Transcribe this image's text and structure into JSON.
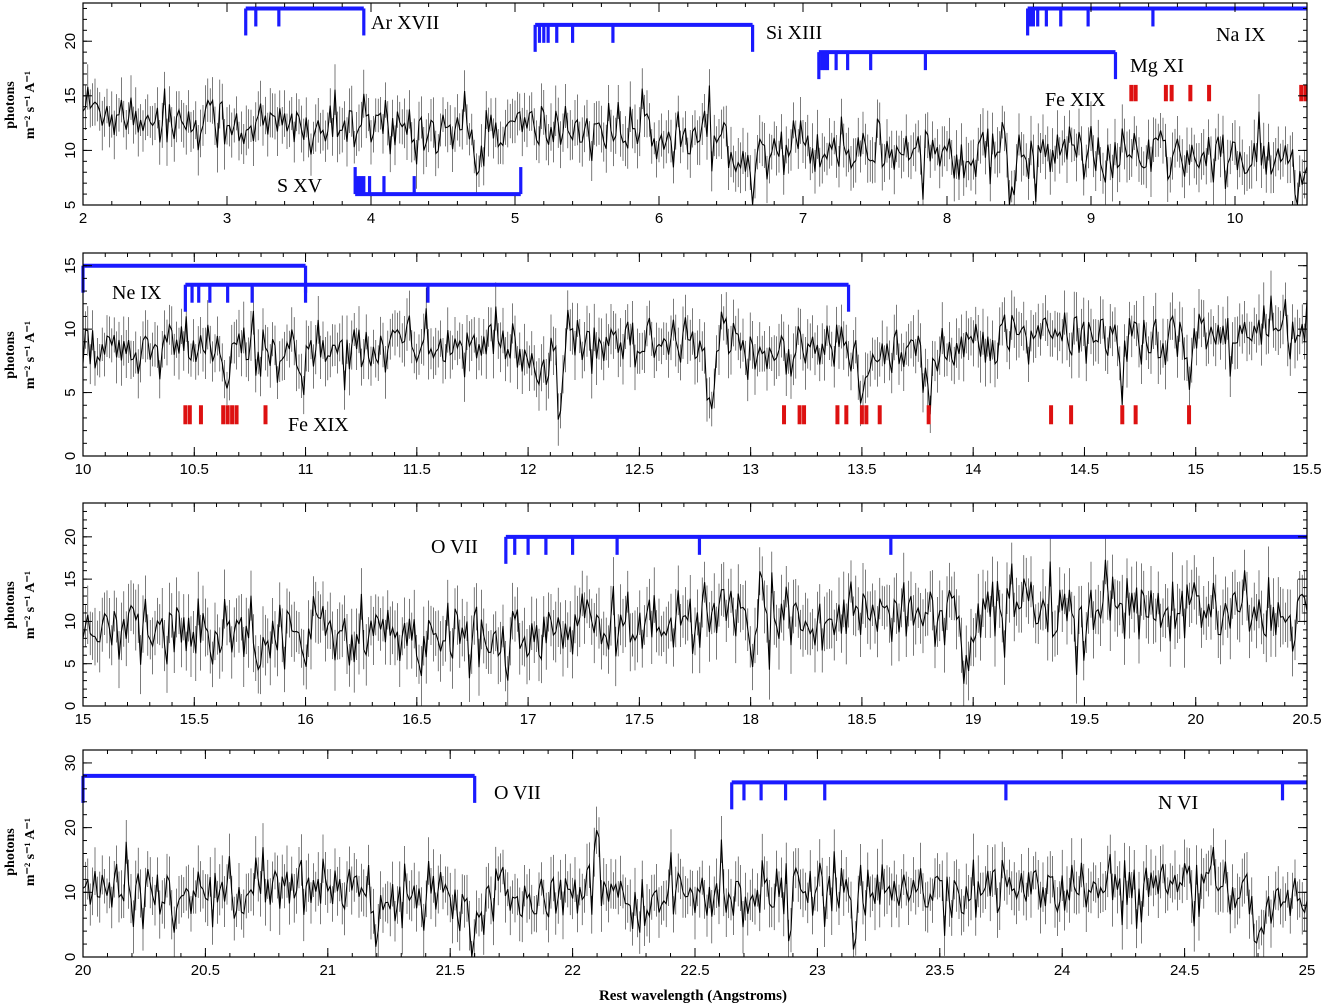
{
  "chart_data": [
    {
      "type": "line",
      "panel": 1,
      "xlim": [
        2,
        10.5
      ],
      "ylim": [
        5,
        23.5
      ],
      "x_ticks": [
        "2",
        "3",
        "4",
        "5",
        "6",
        "7",
        "8",
        "9",
        "10"
      ],
      "y_ticks": [
        "5",
        "10",
        "15",
        "20"
      ],
      "ylabel": [
        "photons",
        "m⁻² s⁻¹ A⁻¹"
      ],
      "xlabel": "",
      "spectrum_profile": {
        "x": [
          2.0,
          2.5,
          3.0,
          3.5,
          4.0,
          4.5,
          5.0,
          5.5,
          6.0,
          6.5,
          7.0,
          7.5,
          8.0,
          8.5,
          9.0,
          9.5,
          10.0,
          10.5
        ],
        "y": [
          14.0,
          13.0,
          12.5,
          12.0,
          12.0,
          12.0,
          12.0,
          12.0,
          11.5,
          10.5,
          10.5,
          10.2,
          10.0,
          9.8,
          9.8,
          9.5,
          9.2,
          9.0
        ],
        "noise": 1.8,
        "absorption": [
          [
            6.65,
            3.5
          ],
          [
            8.45,
            2.5
          ],
          [
            9.15,
            2.0
          ],
          [
            4.75,
            3.0
          ],
          [
            10.45,
            2.5
          ]
        ]
      },
      "line_series": [
        {
          "label": "Ar XVII",
          "color": "#1a1aff",
          "y": 23.0,
          "lines": [
            3.13,
            3.2,
            3.36,
            3.95
          ]
        },
        {
          "label": "Si XIII",
          "color": "#1a1aff",
          "y": 21.5,
          "lines": [
            5.14,
            5.17,
            5.2,
            5.23,
            5.29,
            5.4,
            5.68,
            6.65
          ]
        },
        {
          "label": "Na IX",
          "color": "#1a1aff",
          "y": 23.0,
          "lines": [
            8.56,
            8.58,
            8.6,
            8.63,
            8.69,
            8.79,
            8.98,
            9.43,
            10.5
          ]
        },
        {
          "label": "Mg XI",
          "color": "#1a1aff",
          "y": 19.0,
          "lines": [
            7.11,
            7.13,
            7.15,
            7.17,
            7.23,
            7.31,
            7.47,
            7.85,
            9.17
          ]
        },
        {
          "label": "S XV",
          "color": "#1a1aff",
          "y": 6.0,
          "lines": [
            3.89,
            3.91,
            3.93,
            3.95,
            3.99,
            4.09,
            4.3,
            5.04
          ]
        },
        {
          "label": "Fe XIX",
          "color": "#dd1111",
          "ticks_y": [
            14.5,
            16.0
          ],
          "lines": [
            9.28,
            9.31,
            9.52,
            9.56,
            9.69,
            9.82,
            10.46,
            10.49
          ]
        }
      ]
    },
    {
      "type": "line",
      "panel": 2,
      "xlim": [
        10,
        15.5
      ],
      "ylim": [
        0,
        16
      ],
      "x_ticks": [
        "10",
        "10.5",
        "11",
        "11.5",
        "12",
        "12.5",
        "13",
        "13.5",
        "14",
        "14.5",
        "15",
        "15.5"
      ],
      "y_ticks": [
        "0",
        "5",
        "10",
        "15"
      ],
      "ylabel": [
        "photons",
        "m⁻² s⁻¹ A⁻¹"
      ],
      "xlabel": "",
      "spectrum_profile": {
        "x": [
          10.0,
          10.5,
          11.0,
          11.5,
          12.0,
          12.5,
          13.0,
          13.5,
          14.0,
          14.5,
          15.0,
          15.5
        ],
        "y": [
          8.0,
          8.5,
          8.5,
          8.8,
          8.5,
          8.5,
          8.5,
          8.3,
          8.8,
          9.5,
          9.5,
          10.0
        ],
        "noise": 1.6,
        "absorption": [
          [
            10.65,
            3.0
          ],
          [
            10.98,
            3.0
          ],
          [
            12.04,
            3.5
          ],
          [
            12.14,
            4.5
          ],
          [
            12.82,
            5.0
          ],
          [
            13.5,
            4.0
          ],
          [
            13.8,
            4.0
          ],
          [
            14.67,
            2.5
          ],
          [
            14.97,
            3.0
          ]
        ]
      },
      "line_series": [
        {
          "label": "Ne IX",
          "color": "#1a1aff",
          "y": 15.0,
          "lines": [
            10.0,
            11.0
          ]
        },
        {
          "label": "Ne IX",
          "color": "#1a1aff",
          "y": 13.5,
          "lines": [
            10.46,
            10.49,
            10.52,
            10.57,
            10.65,
            10.76,
            11.0,
            11.55,
            13.44
          ]
        },
        {
          "label": "Fe XIX",
          "color": "#dd1111",
          "ticks_y": [
            2.5,
            4.0
          ],
          "lines": [
            10.46,
            10.48,
            10.53,
            10.63,
            10.65,
            10.67,
            10.69,
            10.82,
            13.15,
            13.22,
            13.24,
            13.39,
            13.43,
            13.5,
            13.52,
            13.58,
            13.8,
            14.35,
            14.44,
            14.67,
            14.73,
            14.97
          ]
        }
      ]
    },
    {
      "type": "line",
      "panel": 3,
      "xlim": [
        15,
        20.5
      ],
      "ylim": [
        0,
        24
      ],
      "x_ticks": [
        "15",
        "15.5",
        "16",
        "16.5",
        "17",
        "17.5",
        "18",
        "18.5",
        "19",
        "19.5",
        "20",
        "20.5"
      ],
      "y_ticks": [
        "0",
        "5",
        "10",
        "15",
        "20"
      ],
      "ylabel": [
        "photons",
        "m⁻² s⁻¹ A⁻¹"
      ],
      "xlabel": "",
      "spectrum_profile": {
        "x": [
          15.0,
          15.5,
          16.0,
          16.5,
          17.0,
          17.5,
          18.0,
          18.5,
          19.0,
          19.5,
          20.0,
          20.5
        ],
        "y": [
          8.5,
          9.0,
          9.0,
          8.5,
          8.0,
          10.0,
          10.5,
          11.0,
          11.5,
          12.0,
          11.0,
          11.0
        ],
        "noise": 2.8,
        "absorption": [
          [
            16.52,
            5.0
          ],
          [
            16.0,
            3.0
          ],
          [
            18.0,
            4.0
          ],
          [
            18.97,
            8.0
          ],
          [
            19.5,
            5.0
          ]
        ]
      },
      "line_series": [
        {
          "label": "O VII",
          "color": "#1a1aff",
          "y": 20.0,
          "lines": [
            16.9,
            16.94,
            17.0,
            17.08,
            17.2,
            17.4,
            17.77,
            18.63,
            20.5
          ]
        }
      ]
    },
    {
      "type": "line",
      "panel": 4,
      "xlim": [
        20,
        25
      ],
      "ylim": [
        0,
        32
      ],
      "x_ticks": [
        "20",
        "20.5",
        "21",
        "21.5",
        "22",
        "22.5",
        "23",
        "23.5",
        "24",
        "24.5",
        "25"
      ],
      "y_ticks": [
        "0",
        "10",
        "20",
        "30"
      ],
      "ylabel": [
        "photons",
        "m⁻² s⁻¹ A⁻¹"
      ],
      "xlabel": "Rest wavelength (Angstroms)",
      "spectrum_profile": {
        "x": [
          20.0,
          20.5,
          21.0,
          21.5,
          22.0,
          22.5,
          23.0,
          23.5,
          24.0,
          24.5,
          25.0
        ],
        "y": [
          10.0,
          10.0,
          11.0,
          10.0,
          10.0,
          10.0,
          10.0,
          10.5,
          10.5,
          10.5,
          9.0
        ],
        "noise": 3.2,
        "absorption": [
          [
            21.2,
            7.0
          ],
          [
            21.6,
            8.0
          ],
          [
            22.25,
            5.0
          ],
          [
            23.15,
            5.0
          ],
          [
            24.8,
            7.0
          ]
        ],
        "emission": [
          [
            22.1,
            13.0
          ]
        ]
      },
      "line_series": [
        {
          "label": "O VII",
          "color": "#1a1aff",
          "y": 28.0,
          "lines": [
            20.0,
            21.6
          ]
        },
        {
          "label": "N VI",
          "color": "#1a1aff",
          "y": 27.0,
          "lines": [
            22.65,
            22.7,
            22.77,
            22.87,
            23.03,
            23.77,
            24.9,
            25.0
          ]
        }
      ]
    }
  ]
}
